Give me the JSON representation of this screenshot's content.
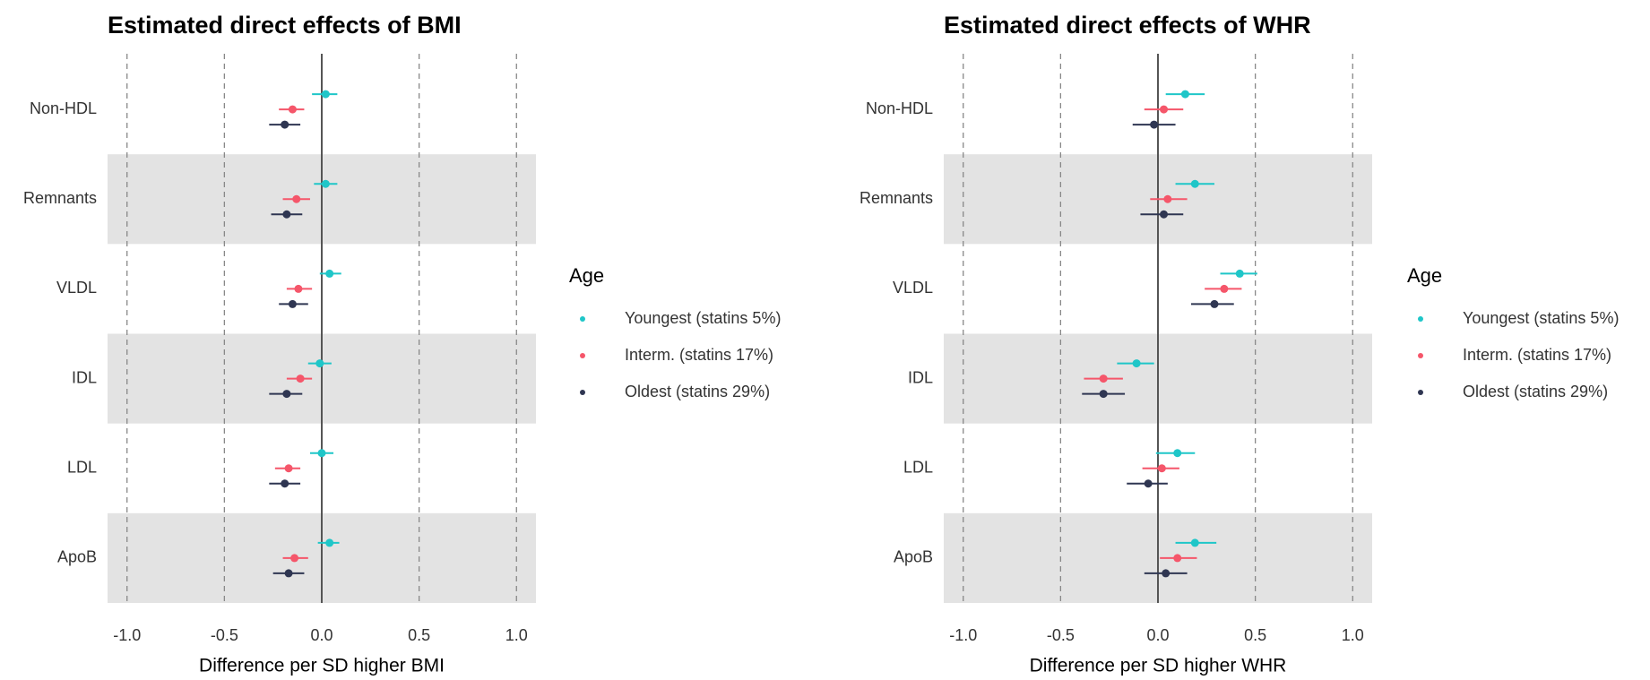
{
  "chart_data": [
    {
      "type": "forest",
      "title": "Estimated direct effects of BMI",
      "xlabel": "Difference per SD higher BMI",
      "categories": [
        "Non-HDL",
        "Remnants",
        "VLDL",
        "IDL",
        "LDL",
        "ApoB"
      ],
      "legend_title": "Age",
      "legend": "right",
      "series": [
        {
          "name": "Youngest (statins 5%)",
          "color": "#1fc6c8",
          "values": [
            0.02,
            0.02,
            0.04,
            -0.01,
            0.0,
            0.04
          ],
          "lower": [
            -0.05,
            -0.04,
            -0.01,
            -0.07,
            -0.06,
            -0.02
          ],
          "upper": [
            0.08,
            0.08,
            0.1,
            0.05,
            0.06,
            0.09
          ]
        },
        {
          "name": "Interm. (statins 17%)",
          "color": "#f5566a",
          "values": [
            -0.15,
            -0.13,
            -0.12,
            -0.11,
            -0.17,
            -0.14
          ],
          "lower": [
            -0.22,
            -0.2,
            -0.18,
            -0.18,
            -0.24,
            -0.2
          ],
          "upper": [
            -0.09,
            -0.06,
            -0.05,
            -0.05,
            -0.11,
            -0.07
          ]
        },
        {
          "name": "Oldest (statins 29%)",
          "color": "#2f3652",
          "values": [
            -0.19,
            -0.18,
            -0.15,
            -0.18,
            -0.19,
            -0.17
          ],
          "lower": [
            -0.27,
            -0.26,
            -0.22,
            -0.27,
            -0.27,
            -0.25
          ],
          "upper": [
            -0.11,
            -0.1,
            -0.07,
            -0.1,
            -0.11,
            -0.09
          ]
        }
      ],
      "xlim": [
        -1.1,
        1.1
      ],
      "xticks": [
        {
          "value": -1,
          "label": "-1.0"
        },
        -0.5,
        {
          "value": 0,
          "label": "0.0"
        },
        0.5,
        {
          "value": 1,
          "label": "1.0"
        }
      ],
      "grid": true
    },
    {
      "type": "forest",
      "title": "Estimated direct effects of WHR",
      "xlabel": "Difference per SD higher WHR",
      "categories": [
        "Non-HDL",
        "Remnants",
        "VLDL",
        "IDL",
        "LDL",
        "ApoB"
      ],
      "legend_title": "Age",
      "legend": "right",
      "series": [
        {
          "name": "Youngest (statins 5%)",
          "color": "#1fc6c8",
          "values": [
            0.14,
            0.19,
            0.42,
            -0.11,
            0.1,
            0.19
          ],
          "lower": [
            0.04,
            0.09,
            0.32,
            -0.21,
            -0.01,
            0.09
          ],
          "upper": [
            0.24,
            0.29,
            0.51,
            -0.02,
            0.19,
            0.3
          ]
        },
        {
          "name": "Interm. (statins 17%)",
          "color": "#f5566a",
          "values": [
            0.03,
            0.05,
            0.34,
            -0.28,
            0.02,
            0.1
          ],
          "lower": [
            -0.07,
            -0.04,
            0.24,
            -0.38,
            -0.08,
            0.01
          ],
          "upper": [
            0.13,
            0.15,
            0.43,
            -0.18,
            0.11,
            0.2
          ]
        },
        {
          "name": "Oldest (statins 29%)",
          "color": "#2f3652",
          "values": [
            -0.02,
            0.03,
            0.29,
            -0.28,
            -0.05,
            0.04
          ],
          "lower": [
            -0.13,
            -0.09,
            0.17,
            -0.39,
            -0.16,
            -0.07
          ],
          "upper": [
            0.09,
            0.13,
            0.39,
            -0.17,
            0.05,
            0.15
          ]
        }
      ],
      "xlim": [
        -1.1,
        1.1
      ],
      "xticks": [
        {
          "value": -1,
          "label": "-1.0"
        },
        -0.5,
        {
          "value": 0,
          "label": "0.0"
        },
        0.5,
        {
          "value": 1,
          "label": "1.0"
        }
      ],
      "grid": true
    }
  ]
}
